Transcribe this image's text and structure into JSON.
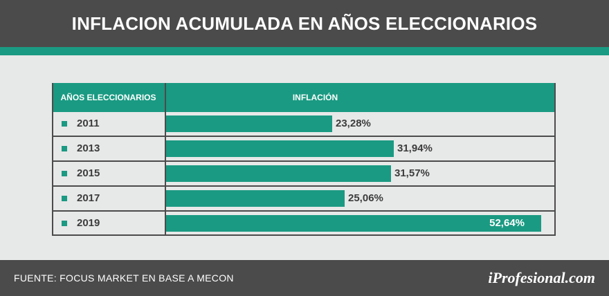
{
  "header": {
    "title": "INFLACION ACUMULADA EN AÑOS ELECCIONARIOS"
  },
  "colors": {
    "teal": "#1a9a82",
    "dark": "#4b4b4b",
    "background": "#e7e8e8"
  },
  "chart_data": {
    "type": "bar",
    "orientation": "horizontal",
    "column_headers": {
      "category": "AÑOS ELECCIONARIOS",
      "value": "INFLACIÓN"
    },
    "categories": [
      "2011",
      "2013",
      "2015",
      "2017",
      "2019"
    ],
    "values": [
      23.28,
      31.94,
      31.57,
      25.06,
      52.64
    ],
    "value_labels": [
      "23,28%",
      "31,94%",
      "31,57%",
      "25,06%",
      "52,64%"
    ],
    "xlim": [
      0,
      52.64
    ],
    "unit": "%"
  },
  "footer": {
    "source": "FUENTE: FOCUS MARKET EN BASE A MECON",
    "brand": "iProfesional.com"
  }
}
